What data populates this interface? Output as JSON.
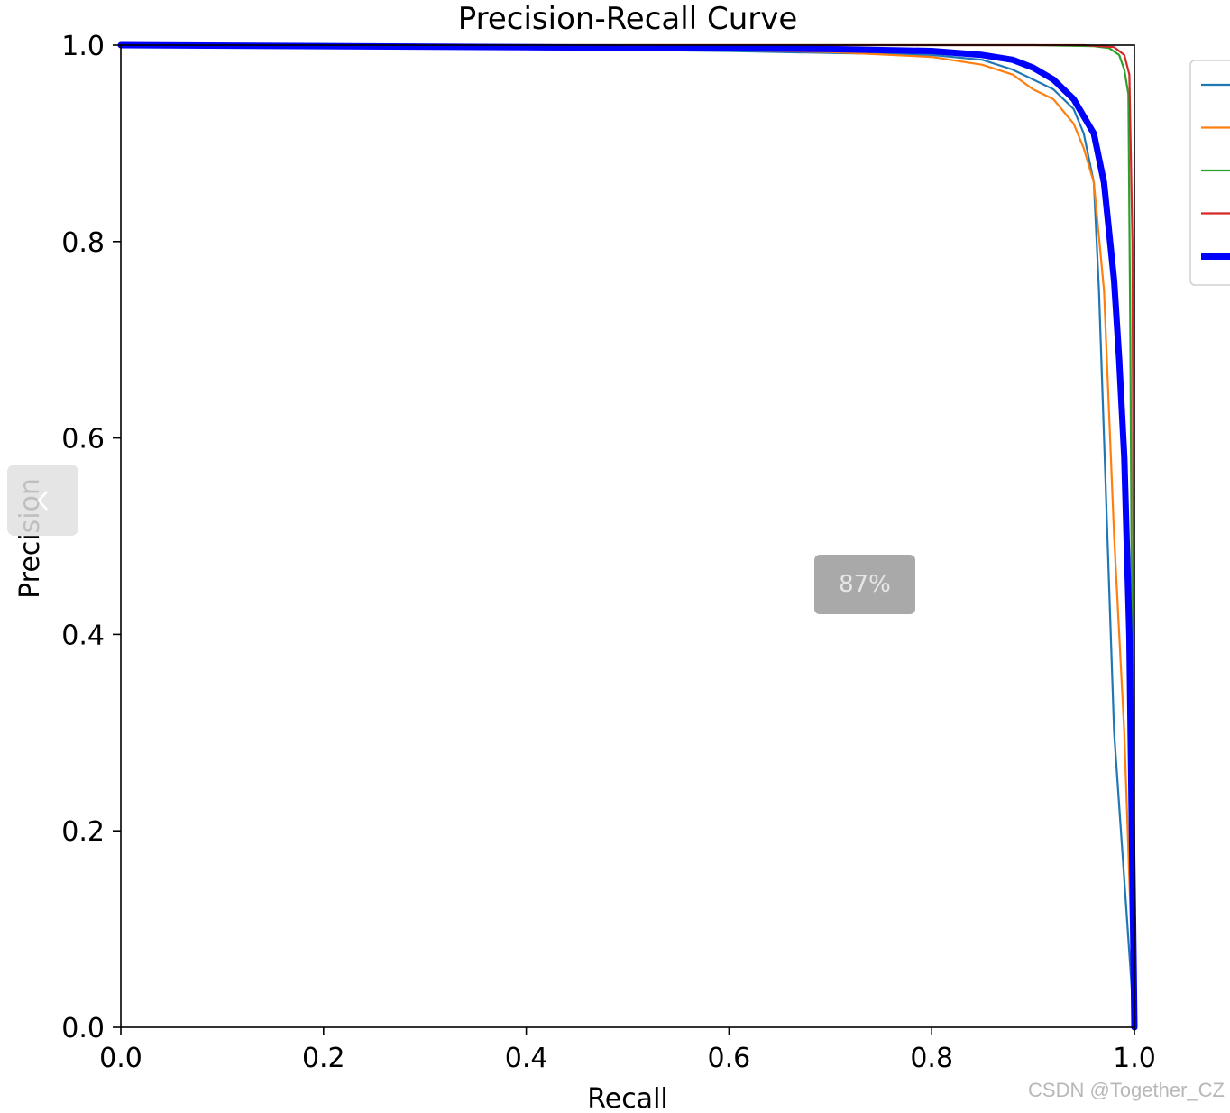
{
  "chart_data": {
    "type": "line",
    "title": "Precision-Recall Curve",
    "xlabel": "Recall",
    "ylabel": "Precision",
    "xlim": [
      0,
      1
    ],
    "ylim": [
      0,
      1
    ],
    "xticks": [
      "0.0",
      "0.2",
      "0.4",
      "0.6",
      "0.8",
      "1.0"
    ],
    "yticks": [
      "0.0",
      "0.2",
      "0.4",
      "0.6",
      "0.8",
      "1.0"
    ],
    "grid": false,
    "legend": "right (partially cut off, labels not visible)",
    "series": [
      {
        "color": "#1f77b4",
        "x": [
          0,
          0.2,
          0.4,
          0.6,
          0.7,
          0.8,
          0.85,
          0.88,
          0.9,
          0.92,
          0.94,
          0.95,
          0.96,
          0.965,
          0.97,
          0.975,
          0.98,
          0.99,
          1.0
        ],
        "y": [
          1.0,
          0.998,
          0.996,
          0.994,
          0.992,
          0.99,
          0.985,
          0.975,
          0.965,
          0.955,
          0.935,
          0.91,
          0.86,
          0.75,
          0.6,
          0.45,
          0.3,
          0.15,
          0.0
        ]
      },
      {
        "color": "#ff7f0e",
        "x": [
          0,
          0.2,
          0.4,
          0.6,
          0.7,
          0.8,
          0.85,
          0.88,
          0.9,
          0.92,
          0.94,
          0.95,
          0.96,
          0.97,
          0.98,
          0.99,
          0.995,
          1.0
        ],
        "y": [
          1.0,
          0.998,
          0.996,
          0.995,
          0.993,
          0.988,
          0.98,
          0.97,
          0.955,
          0.945,
          0.92,
          0.895,
          0.86,
          0.75,
          0.5,
          0.3,
          0.15,
          0.0
        ]
      },
      {
        "color": "#2ca02c",
        "x": [
          0,
          0.5,
          0.9,
          0.96,
          0.975,
          0.985,
          0.99,
          0.994,
          0.996,
          0.998,
          1.0
        ],
        "y": [
          1.0,
          1.0,
          1.0,
          0.999,
          0.997,
          0.99,
          0.975,
          0.95,
          0.7,
          0.3,
          0.0
        ]
      },
      {
        "color": "#d62728",
        "x": [
          0,
          0.5,
          0.95,
          0.98,
          0.99,
          0.995,
          0.998,
          0.999,
          1.0
        ],
        "y": [
          1.0,
          1.0,
          1.0,
          0.998,
          0.99,
          0.97,
          0.8,
          0.5,
          0.0
        ]
      },
      {
        "color": "#0000ff",
        "x": [
          0,
          0.2,
          0.4,
          0.6,
          0.7,
          0.8,
          0.85,
          0.88,
          0.9,
          0.92,
          0.94,
          0.96,
          0.97,
          0.98,
          0.985,
          0.99,
          0.995,
          1.0
        ],
        "y": [
          1.0,
          0.999,
          0.998,
          0.997,
          0.996,
          0.994,
          0.99,
          0.985,
          0.977,
          0.965,
          0.945,
          0.91,
          0.86,
          0.76,
          0.68,
          0.58,
          0.4,
          0.0
        ]
      }
    ]
  },
  "overlay": {
    "zoom_label": "87%"
  },
  "watermark": "CSDN @Together_CZ"
}
